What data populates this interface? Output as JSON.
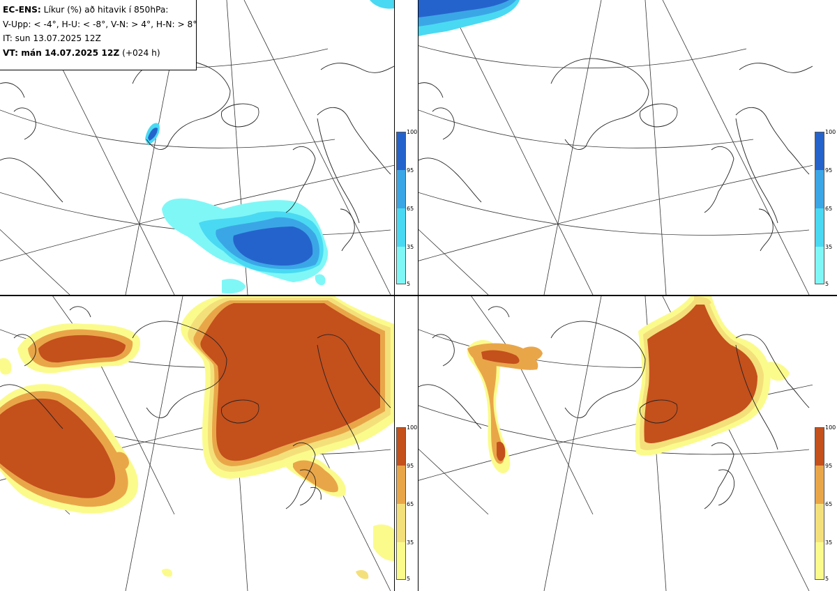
{
  "header": {
    "model": "EC-ENS:",
    "title_rest": "Líkur (%) að hitavik í 850hPa:",
    "thresholds": "V-Upp: < -4°, H-U: < -8°, V-N: > 4°, H-N: > 8°",
    "it_line": "IT: sun 13.07.2025 12Z",
    "vt_bold": "VT: mán 14.07.2025 12Z",
    "vt_lead": "(+024 h)"
  },
  "colors": {
    "cold_scale": [
      "#7ff7f7",
      "#4ad9f2",
      "#3ba6e6",
      "#2563cc"
    ],
    "warm_scale": [
      "#fbfb8c",
      "#f4e07a",
      "#e9a649",
      "#c4501c"
    ],
    "coast": "#222222",
    "grid": "#333333"
  },
  "panels": [
    {
      "id": "v-upp",
      "scale": "cold",
      "colorbar_ticks": [
        "100",
        "95",
        "65",
        "35",
        "5"
      ]
    },
    {
      "id": "h-u",
      "scale": "cold",
      "colorbar_ticks": [
        "100",
        "95",
        "65",
        "35",
        "5"
      ]
    },
    {
      "id": "v-n",
      "scale": "warm",
      "colorbar_ticks": [
        "100",
        "95",
        "65",
        "35",
        "5"
      ]
    },
    {
      "id": "h-n",
      "scale": "warm",
      "colorbar_ticks": [
        "100",
        "95",
        "65",
        "35",
        "5"
      ]
    }
  ]
}
